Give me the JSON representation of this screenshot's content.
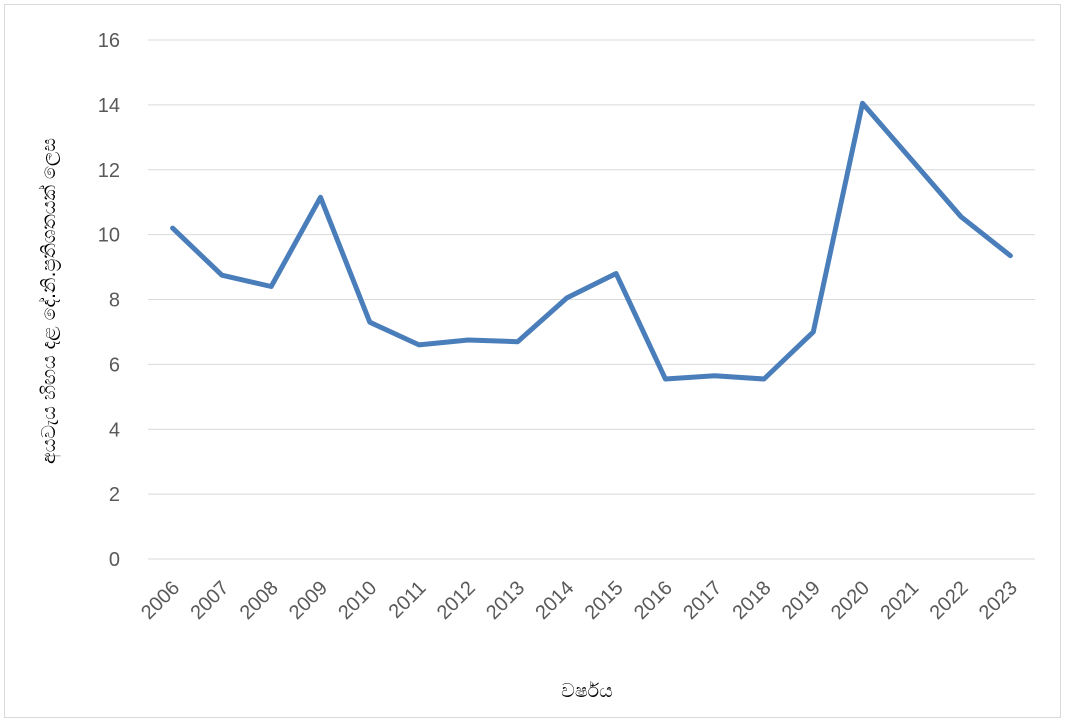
{
  "chart_data": {
    "type": "line",
    "title": "",
    "xlabel": "වර්ෂය",
    "ylabel": "අයවැය හිඟය දළ දේ.නි.ප්‍රතිශතයක් ලෙස",
    "ylim": [
      0,
      16
    ],
    "yticks": [
      0,
      2,
      4,
      6,
      8,
      10,
      12,
      14,
      16
    ],
    "grid": true,
    "legend": "none",
    "categories": [
      "2006",
      "2007",
      "2008",
      "2009",
      "2010",
      "2011",
      "2012",
      "2013",
      "2014",
      "2015",
      "2016",
      "2017",
      "2018",
      "2019",
      "2020",
      "2021",
      "2022",
      "2023"
    ],
    "series": [
      {
        "color": "#4a7ebb",
        "values": [
          10.2,
          8.75,
          8.4,
          11.15,
          7.3,
          6.6,
          6.75,
          6.7,
          8.05,
          8.8,
          5.55,
          5.65,
          5.55,
          7.0,
          14.05,
          12.3,
          10.55,
          9.35
        ]
      }
    ]
  }
}
